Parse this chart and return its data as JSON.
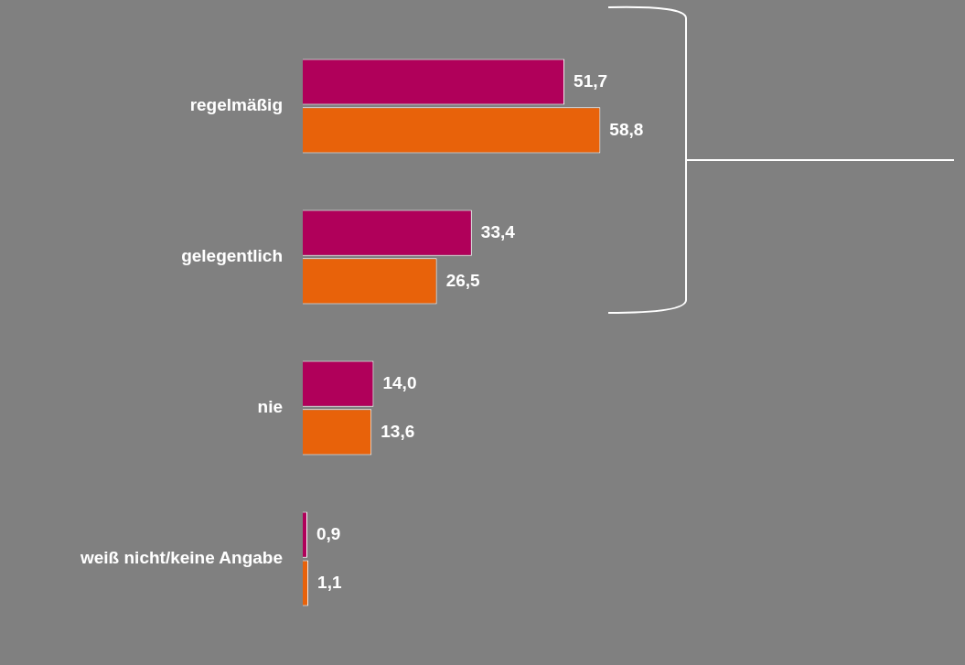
{
  "chart_data": {
    "type": "bar",
    "orientation": "horizontal",
    "categories": [
      "regelmäßig",
      "gelegentlich",
      "nie",
      "weiß nicht/keine Angabe"
    ],
    "series": [
      {
        "color": "#b0005a",
        "values": [
          51.7,
          33.4,
          14.0,
          0.9
        ],
        "value_labels": [
          "51,7",
          "33,4",
          "14,0",
          "0,9"
        ]
      },
      {
        "color": "#e8620a",
        "values": [
          58.8,
          26.5,
          13.6,
          1.1
        ],
        "value_labels": [
          "58,8",
          "26,5",
          "13,6",
          "1,1"
        ]
      }
    ],
    "grid": false,
    "legend": false,
    "tick_labels": "y"
  }
}
